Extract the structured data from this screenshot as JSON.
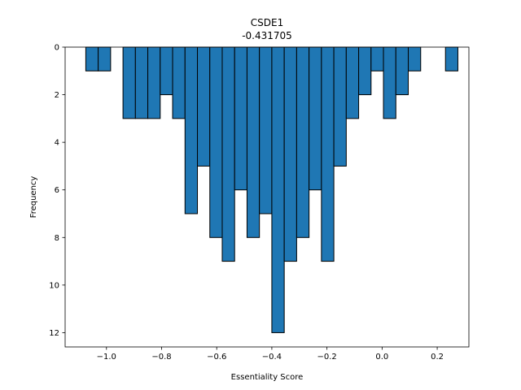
{
  "chart_data": {
    "type": "bar",
    "title": "CSDE1",
    "subtitle": "-0.431705",
    "xlabel": "Essentiality Score",
    "ylabel": "Frequency",
    "xlim": [
      -1.15,
      0.315
    ],
    "ylim": [
      12.6,
      0
    ],
    "y_inverted": true,
    "bin_width": 0.045,
    "xticks": [
      -1.0,
      -0.8,
      -0.6,
      -0.4,
      -0.2,
      0.0,
      0.2
    ],
    "xtick_labels": [
      "−1.0",
      "−0.8",
      "−0.6",
      "−0.4",
      "−0.2",
      "0.0",
      "0.2"
    ],
    "yticks": [
      0,
      2,
      4,
      6,
      8,
      10,
      12
    ],
    "ytick_labels": [
      "0",
      "2",
      "4",
      "6",
      "8",
      "10",
      "12"
    ],
    "bins_left": [
      -1.075,
      -1.03,
      -0.985,
      -0.94,
      -0.895,
      -0.85,
      -0.805,
      -0.76,
      -0.715,
      -0.67,
      -0.625,
      -0.58,
      -0.535,
      -0.49,
      -0.445,
      -0.4,
      -0.355,
      -0.31,
      -0.265,
      -0.22,
      -0.175,
      -0.13,
      -0.085,
      -0.04,
      0.005,
      0.05,
      0.095,
      0.14,
      0.185,
      0.23
    ],
    "values": [
      1,
      1,
      0,
      3,
      3,
      3,
      2,
      3,
      7,
      5,
      8,
      9,
      6,
      8,
      7,
      12,
      9,
      8,
      6,
      9,
      5,
      3,
      2,
      1,
      3,
      2,
      1,
      0,
      0,
      1
    ],
    "bar_color": "#1f77b4",
    "edge_color": "#000000",
    "grid": false,
    "legend": "none"
  }
}
